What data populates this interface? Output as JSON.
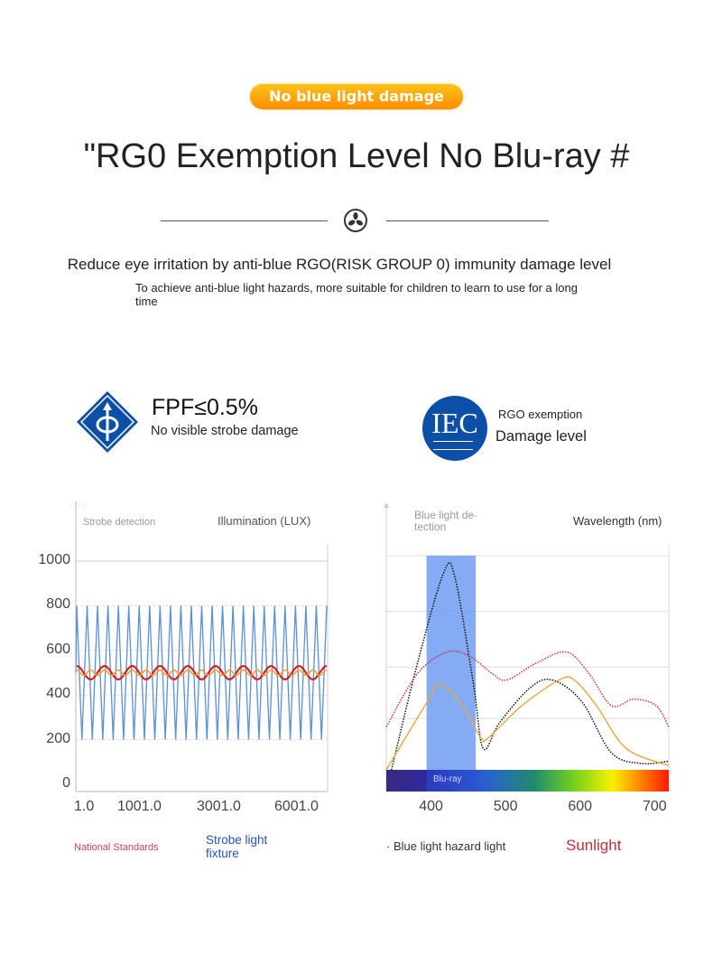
{
  "badge": "No blue light damage",
  "title": "\"RG0 Exemption Level No Blu-ray #",
  "subtitle": "Reduce eye irritation by anti-blue RGO(RISK GROUP 0) immunity damage level",
  "description": "To achieve anti-blue light hazards, more suitable for children to learn to use for a long time",
  "features": {
    "fpf": {
      "title": "FPF≤0.5%",
      "text": "No visible strobe damage"
    },
    "iec": {
      "logo": "IEC",
      "line1": "RGO exemption",
      "line2": "Damage level"
    }
  },
  "colors": {
    "accent": "#ff9a00",
    "brand_blue": "#0d4ea6",
    "strobe": "#5b8fd6",
    "national": "#d42027",
    "orange_line": "#f0a020"
  },
  "chart_data": [
    {
      "type": "line",
      "title": "Strobe detection",
      "ylabel": "Illumination (LUX)",
      "y_ticks": [
        0,
        200,
        400,
        600,
        800,
        1000
      ],
      "x_tick_labels": [
        "1.0",
        "1001.0",
        "3001.0",
        "6001.0"
      ],
      "ylim": [
        0,
        1000
      ],
      "grid": true,
      "series": [
        {
          "name": "Strobe light fixture",
          "shape": "triangle-wave",
          "min": 200,
          "max": 800,
          "cycles": 24,
          "color": "#5b8fd6"
        },
        {
          "name": "National Standards",
          "shape": "sine",
          "min": 470,
          "max": 530,
          "cycles": 9,
          "color": "#d42027"
        },
        {
          "shape": "sine",
          "min": 488,
          "max": 512,
          "cycles": 18,
          "color": "#f0a020"
        }
      ],
      "legend": [
        "National Standards",
        "Strobe light fixture"
      ],
      "faint_label": "One"
    },
    {
      "type": "line",
      "title": "Blue light de-\ntection",
      "xlabel": "Wavelength (nm)",
      "x_ticks": [
        400,
        500,
        600,
        700
      ],
      "xlim": [
        338,
        717
      ],
      "ylim": [
        0,
        1
      ],
      "grid": true,
      "highlight_band": {
        "label": "Blu-ray",
        "from": 392,
        "to": 458
      },
      "series": [
        {
          "name": "Blue light hazard light",
          "style": "dotted",
          "color": "#111111",
          "x": [
            345,
            380,
            415,
            430,
            455,
            468,
            490,
            530,
            560,
            600,
            640,
            680,
            717
          ],
          "y": [
            0,
            0.5,
            0.92,
            0.9,
            0.4,
            0.1,
            0.22,
            0.38,
            0.42,
            0.32,
            0.08,
            0.03,
            0.04
          ]
        },
        {
          "name": "Sunlight",
          "style": "dotted",
          "color": "#c0304a",
          "x": [
            338,
            380,
            420,
            450,
            480,
            500,
            540,
            580,
            610,
            640,
            670,
            700,
            717
          ],
          "y": [
            0.2,
            0.45,
            0.55,
            0.53,
            0.45,
            0.42,
            0.5,
            0.55,
            0.45,
            0.3,
            0.33,
            0.3,
            0.2
          ]
        },
        {
          "style": "solid",
          "color": "#e8a840",
          "x": [
            338,
            390,
            410,
            440,
            465,
            475,
            520,
            570,
            590,
            620,
            660,
            717
          ],
          "y": [
            0,
            0.3,
            0.4,
            0.3,
            0.15,
            0.15,
            0.3,
            0.42,
            0.42,
            0.3,
            0.1,
            0.02
          ]
        }
      ],
      "legend": [
        "Blue light hazard light",
        "Sunlight"
      ]
    }
  ]
}
